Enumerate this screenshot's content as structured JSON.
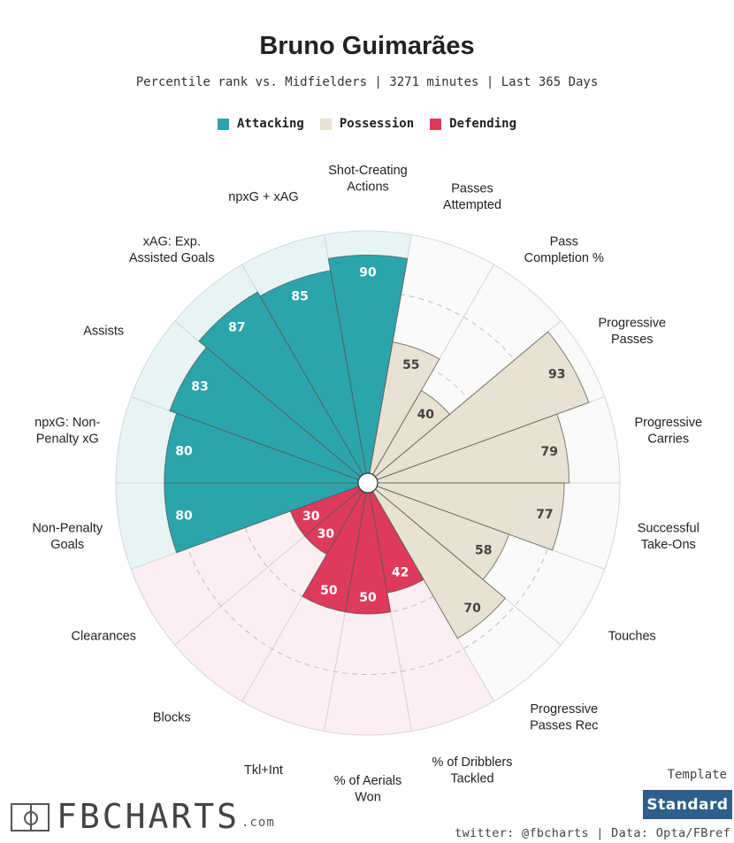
{
  "title": "Bruno Guimarães",
  "subtitle": "Percentile rank vs. Midfielders | 3271 minutes | Last 365 Days",
  "legend": [
    {
      "label": "Attacking",
      "color": "#2ba5ab"
    },
    {
      "label": "Possession",
      "color": "#e8e2d2"
    },
    {
      "label": "Defending",
      "color": "#de3a5c"
    }
  ],
  "colors": {
    "attacking": "#2ba5ab",
    "attacking_bg": "#e7f4f4",
    "possession": "#e8e2d2",
    "possession_bg": "#fafaf8",
    "defending": "#de3a5c",
    "defending_bg": "#fceef1",
    "grid": "#cfcfcf",
    "dark_text": "#444444",
    "light_text": "#ffffff"
  },
  "chart_data": {
    "type": "polar-bar",
    "title": "Bruno Guimarães",
    "subtitle": "Percentile rank vs. Midfielders | 3271 minutes | Last 365 Days",
    "rlim": [
      0,
      100
    ],
    "grid_rings": [
      25,
      50,
      75
    ],
    "categories": [
      {
        "label": "Shot-Creating Actions",
        "lines": [
          "Shot-Creating",
          "Actions"
        ],
        "group": "Attacking",
        "value": 90
      },
      {
        "label": "Passes Attempted",
        "lines": [
          "Passes",
          "Attempted"
        ],
        "group": "Possession",
        "value": 55
      },
      {
        "label": "Pass Completion %",
        "lines": [
          "Pass",
          "Completion %"
        ],
        "group": "Possession",
        "value": 40
      },
      {
        "label": "Progressive Passes",
        "lines": [
          "Progressive",
          "Passes"
        ],
        "group": "Possession",
        "value": 93
      },
      {
        "label": "Progressive Carries",
        "lines": [
          "Progressive",
          "Carries"
        ],
        "group": "Possession",
        "value": 79
      },
      {
        "label": "Successful Take-Ons",
        "lines": [
          "Successful",
          "Take-Ons"
        ],
        "group": "Possession",
        "value": 77
      },
      {
        "label": "Touches",
        "lines": [
          "Touches"
        ],
        "group": "Possession",
        "value": 58
      },
      {
        "label": "Progressive Passes Rec",
        "lines": [
          "Progressive",
          "Passes Rec"
        ],
        "group": "Possession",
        "value": 70
      },
      {
        "label": "% of Dribblers Tackled",
        "lines": [
          "% of Dribblers",
          "Tackled"
        ],
        "group": "Defending",
        "value": 42
      },
      {
        "label": "% of Aerials Won",
        "lines": [
          "% of Aerials",
          "Won"
        ],
        "group": "Defending",
        "value": 50
      },
      {
        "label": "Tkl+Int",
        "lines": [
          "Tkl+Int"
        ],
        "group": "Defending",
        "value": 50
      },
      {
        "label": "Blocks",
        "lines": [
          "Blocks"
        ],
        "group": "Defending",
        "value": 30
      },
      {
        "label": "Clearances",
        "lines": [
          "Clearances"
        ],
        "group": "Defending",
        "value": 30
      },
      {
        "label": "Non-Penalty Goals",
        "lines": [
          "Non-Penalty",
          "Goals"
        ],
        "group": "Attacking",
        "value": 80
      },
      {
        "label": "npxG: Non-Penalty xG",
        "lines": [
          "npxG: Non-",
          "Penalty xG"
        ],
        "group": "Attacking",
        "value": 80
      },
      {
        "label": "Assists",
        "lines": [
          "Assists"
        ],
        "group": "Attacking",
        "value": 83
      },
      {
        "label": "xAG: Exp. Assisted Goals",
        "lines": [
          "xAG: Exp.",
          "Assisted Goals"
        ],
        "group": "Attacking",
        "value": 87
      },
      {
        "label": "npxG + xAG",
        "lines": [
          "npxG + xAG"
        ],
        "group": "Attacking",
        "value": 85
      }
    ]
  },
  "footer": {
    "template_label": "Template",
    "template_value": "Standard",
    "credits": "twitter: @fbcharts | Data: Opta/FBref",
    "logo_text": "FBCHARTS",
    "logo_suffix": ".com"
  }
}
